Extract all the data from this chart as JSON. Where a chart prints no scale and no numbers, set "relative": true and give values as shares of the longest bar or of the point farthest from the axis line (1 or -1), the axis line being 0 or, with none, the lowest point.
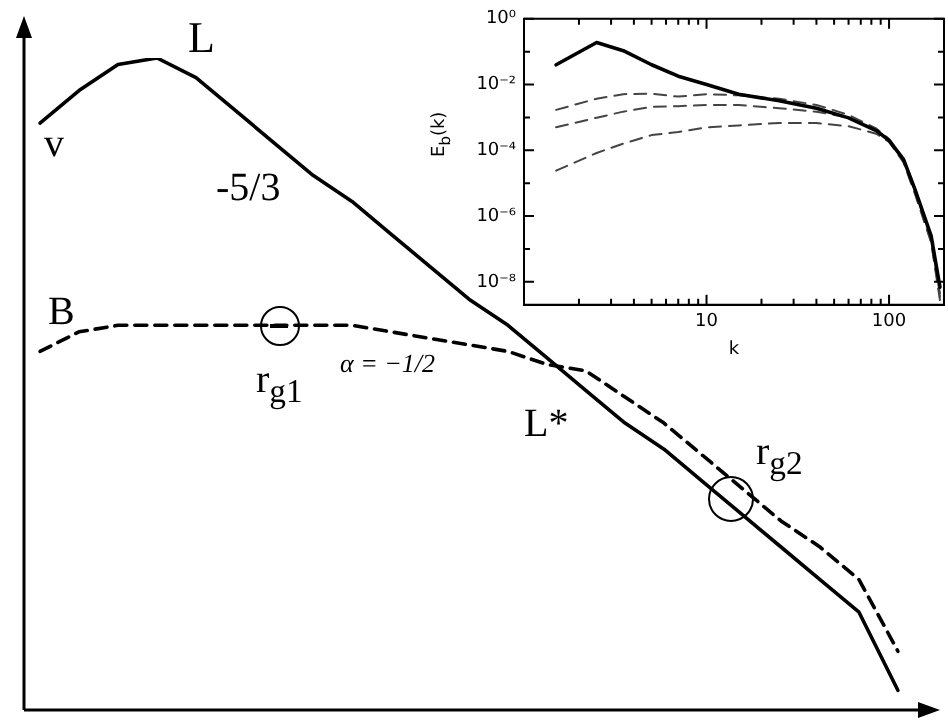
{
  "chart_data": [
    {
      "type": "line",
      "relative": true,
      "marker": "none",
      "categories": [
        null,
        null,
        null,
        null,
        null,
        null,
        null,
        null,
        null,
        null,
        null,
        null,
        null,
        null,
        null,
        null,
        null,
        null,
        null,
        null,
        null,
        null,
        null
      ],
      "series": [
        {
          "color": "#000000",
          "line_style": "solid",
          "values": [
            0.9,
            0.95,
            0.99,
            1,
            0.97,
            0.92,
            0.87,
            0.82,
            0.78,
            0.73,
            0.68,
            0.63,
            0.59,
            0.54,
            0.49,
            0.44,
            0.4,
            0.35,
            0.3,
            0.25,
            0.2,
            0.15,
            0.03
          ]
        },
        {
          "color": "#000000",
          "line_style": "dashed",
          "values": [
            0.55,
            0.58,
            0.59,
            0.59,
            0.59,
            0.59,
            0.59,
            0.59,
            0.59,
            0.58,
            0.57,
            0.56,
            0.55,
            0.53,
            0.52,
            0.48,
            0.44,
            0.39,
            0.34,
            0.29,
            0.25,
            0.2,
            0.09
          ]
        }
      ],
      "annotations": [
        "L",
        "v",
        "-5/3",
        "B",
        "r$_{g1}$",
        "α = −1/2",
        "L*",
        "r$_{g2}$"
      ]
    },
    {
      "type": "line",
      "log": "xy",
      "marker": "none",
      "xlabel": "k",
      "ylabel": "E$_{b}$(k)",
      "x": [
        1.5,
        2.5,
        3.5,
        5,
        7,
        10,
        15,
        25,
        40,
        60,
        85,
        100,
        120,
        140,
        170,
        190
      ],
      "xlim": [
        1,
        200
      ],
      "ylim": [
        2e-09,
        1
      ],
      "xticks": [
        {
          "value": 2,
          "label": null
        },
        {
          "value": 3,
          "label": null
        },
        {
          "value": 4,
          "label": null
        },
        {
          "value": 5,
          "label": null
        },
        {
          "value": 6,
          "label": null
        },
        {
          "value": 7,
          "label": null
        },
        {
          "value": 8,
          "label": null
        },
        {
          "value": 9,
          "label": null
        },
        10,
        {
          "value": 20,
          "label": null
        },
        {
          "value": 30,
          "label": null
        },
        {
          "value": 40,
          "label": null
        },
        {
          "value": 50,
          "label": null
        },
        {
          "value": 60,
          "label": null
        },
        {
          "value": 70,
          "label": null
        },
        {
          "value": 80,
          "label": null
        },
        {
          "value": 90,
          "label": null
        },
        100
      ],
      "yticks": [
        {
          "value": 1e-08,
          "label": "10⁻⁸"
        },
        {
          "value": 1e-07,
          "label": null
        },
        {
          "value": 1e-06,
          "label": "10⁻⁶"
        },
        {
          "value": 1e-05,
          "label": null
        },
        {
          "value": 0.0001,
          "label": "10⁻⁴"
        },
        {
          "value": 0.001,
          "label": null
        },
        {
          "value": 0.01,
          "label": "10⁻²"
        },
        {
          "value": 0.1,
          "label": null
        },
        {
          "value": 1,
          "label": "10⁰"
        }
      ],
      "series": [
        {
          "color": "#000000",
          "line_style": "solid",
          "values": [
            0.04,
            0.19,
            0.107,
            0.04,
            0.018,
            0.01,
            0.0051,
            0.0032,
            0.0019,
            0.00097,
            0.0004,
            0.0002,
            5.3e-05,
            5.6e-06,
            2.5e-07,
            6.9e-09
          ]
        },
        {
          "color": "#444444",
          "line_style": "dashed",
          "values": [
            0.0017,
            0.0037,
            0.0051,
            0.0053,
            0.0043,
            0.0051,
            0.0047,
            0.0037,
            0.0024,
            0.0012,
            0.00046,
            0.00022,
            5.3e-05,
            5e-06,
            2e-07,
            4.5e-09
          ]
        },
        {
          "color": "#444444",
          "line_style": "dashed",
          "values": [
            0.0005,
            0.00098,
            0.0015,
            0.0021,
            0.0022,
            0.0024,
            0.0024,
            0.0019,
            0.0015,
            0.00098,
            0.0004,
            0.0002,
            4.9e-05,
            4.5e-06,
            1.7e-07,
            3.5e-09
          ]
        },
        {
          "color": "#444444",
          "line_style": "dashed",
          "values": [
            2.4e-05,
            8.3e-05,
            0.00016,
            0.00029,
            0.00036,
            0.0005,
            0.00057,
            0.00068,
            0.00068,
            0.00054,
            0.00032,
            0.00018,
            4.3e-05,
            4e-06,
            1.6e-07,
            2.8e-09
          ]
        }
      ]
    }
  ]
}
